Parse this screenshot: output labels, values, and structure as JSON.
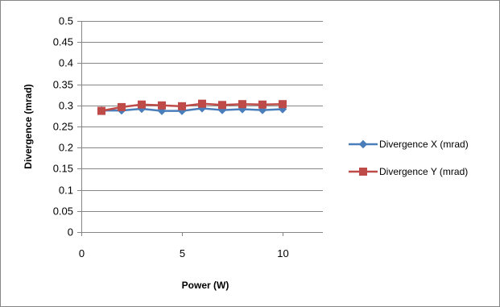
{
  "chart_data": {
    "type": "line",
    "title": "",
    "xlabel": "Power (W)",
    "ylabel": "Divergence (mrad)",
    "xlim": [
      0,
      12
    ],
    "ylim": [
      0,
      0.5
    ],
    "x_ticks": [
      0,
      5,
      10
    ],
    "y_ticks": [
      0,
      0.05,
      0.1,
      0.15,
      0.2,
      0.25,
      0.3,
      0.35,
      0.4,
      0.45,
      0.5
    ],
    "grid": "horizontal",
    "legend_position": "right",
    "x": [
      1,
      2,
      3,
      4,
      5,
      6,
      7,
      8,
      9,
      10
    ],
    "series": [
      {
        "name": "Divergence X (mrad)",
        "values": [
          0.288,
          0.288,
          0.292,
          0.287,
          0.287,
          0.293,
          0.289,
          0.291,
          0.289,
          0.291
        ],
        "color": "#4a7ebb",
        "marker": "diamond"
      },
      {
        "name": "Divergence Y (mrad)",
        "values": [
          0.287,
          0.296,
          0.302,
          0.3,
          0.298,
          0.304,
          0.301,
          0.303,
          0.302,
          0.303
        ],
        "color": "#be4b48",
        "marker": "square"
      }
    ]
  }
}
